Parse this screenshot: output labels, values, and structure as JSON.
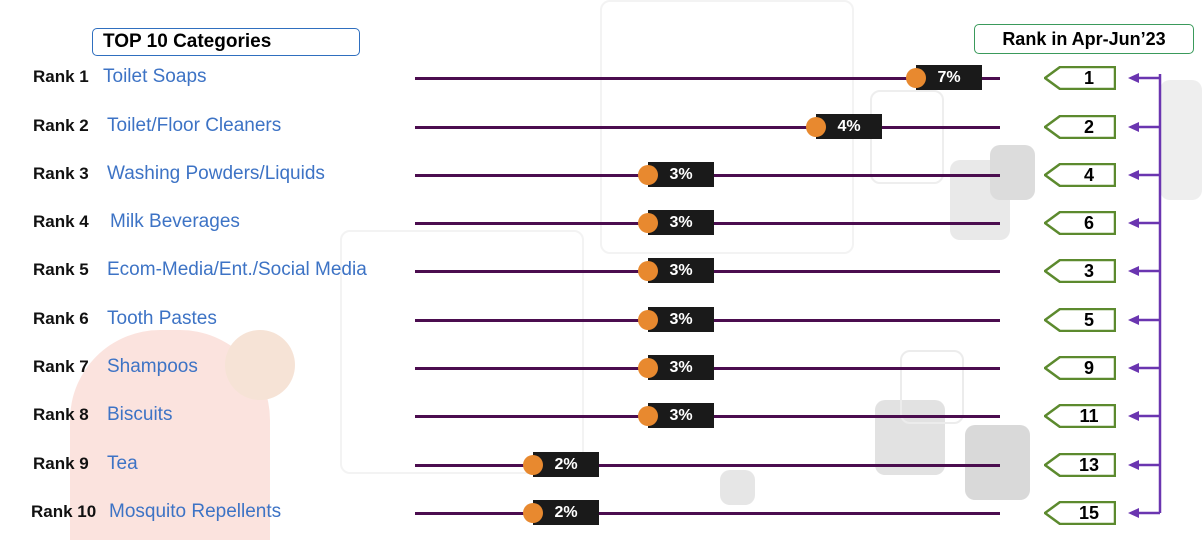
{
  "title": "TOP 10 Categories",
  "rank_header": "Rank in Apr-Jun’23",
  "colors": {
    "category_text": "#3d73c5",
    "track": "#4b0d4f",
    "dot": "#e8892f",
    "label_bg": "#1a1a1a",
    "tag_border": "#5c8a2e",
    "connector": "#6a35b0"
  },
  "chart_data": {
    "type": "dot",
    "rows": [
      {
        "rank_label": "Rank 1",
        "category": "Toilet Soaps",
        "value": 7,
        "value_label": "7%",
        "prev_rank": "1"
      },
      {
        "rank_label": "Rank 2",
        "category": "Toilet/Floor Cleaners",
        "value": 4,
        "value_label": "4%",
        "prev_rank": "2"
      },
      {
        "rank_label": "Rank 3",
        "category": "Washing Powders/Liquids",
        "value": 3,
        "value_label": "3%",
        "prev_rank": "4"
      },
      {
        "rank_label": "Rank 4",
        "category": "Milk Beverages",
        "value": 3,
        "value_label": "3%",
        "prev_rank": "6"
      },
      {
        "rank_label": "Rank 5",
        "category": "Ecom-Media/Ent./Social Media",
        "value": 3,
        "value_label": "3%",
        "prev_rank": "3"
      },
      {
        "rank_label": "Rank 6",
        "category": "Tooth Pastes",
        "value": 3,
        "value_label": "3%",
        "prev_rank": "5"
      },
      {
        "rank_label": "Rank 7",
        "category": "Shampoos",
        "value": 3,
        "value_label": "3%",
        "prev_rank": "9"
      },
      {
        "rank_label": "Rank 8",
        "category": "Biscuits",
        "value": 3,
        "value_label": "3%",
        "prev_rank": "11"
      },
      {
        "rank_label": "Rank 9",
        "category": "Tea",
        "value": 2,
        "value_label": "2%",
        "prev_rank": "13"
      },
      {
        "rank_label": "Rank 10",
        "category": "Mosquito Repellents",
        "value": 2,
        "value_label": "2%",
        "prev_rank": "15"
      }
    ]
  }
}
